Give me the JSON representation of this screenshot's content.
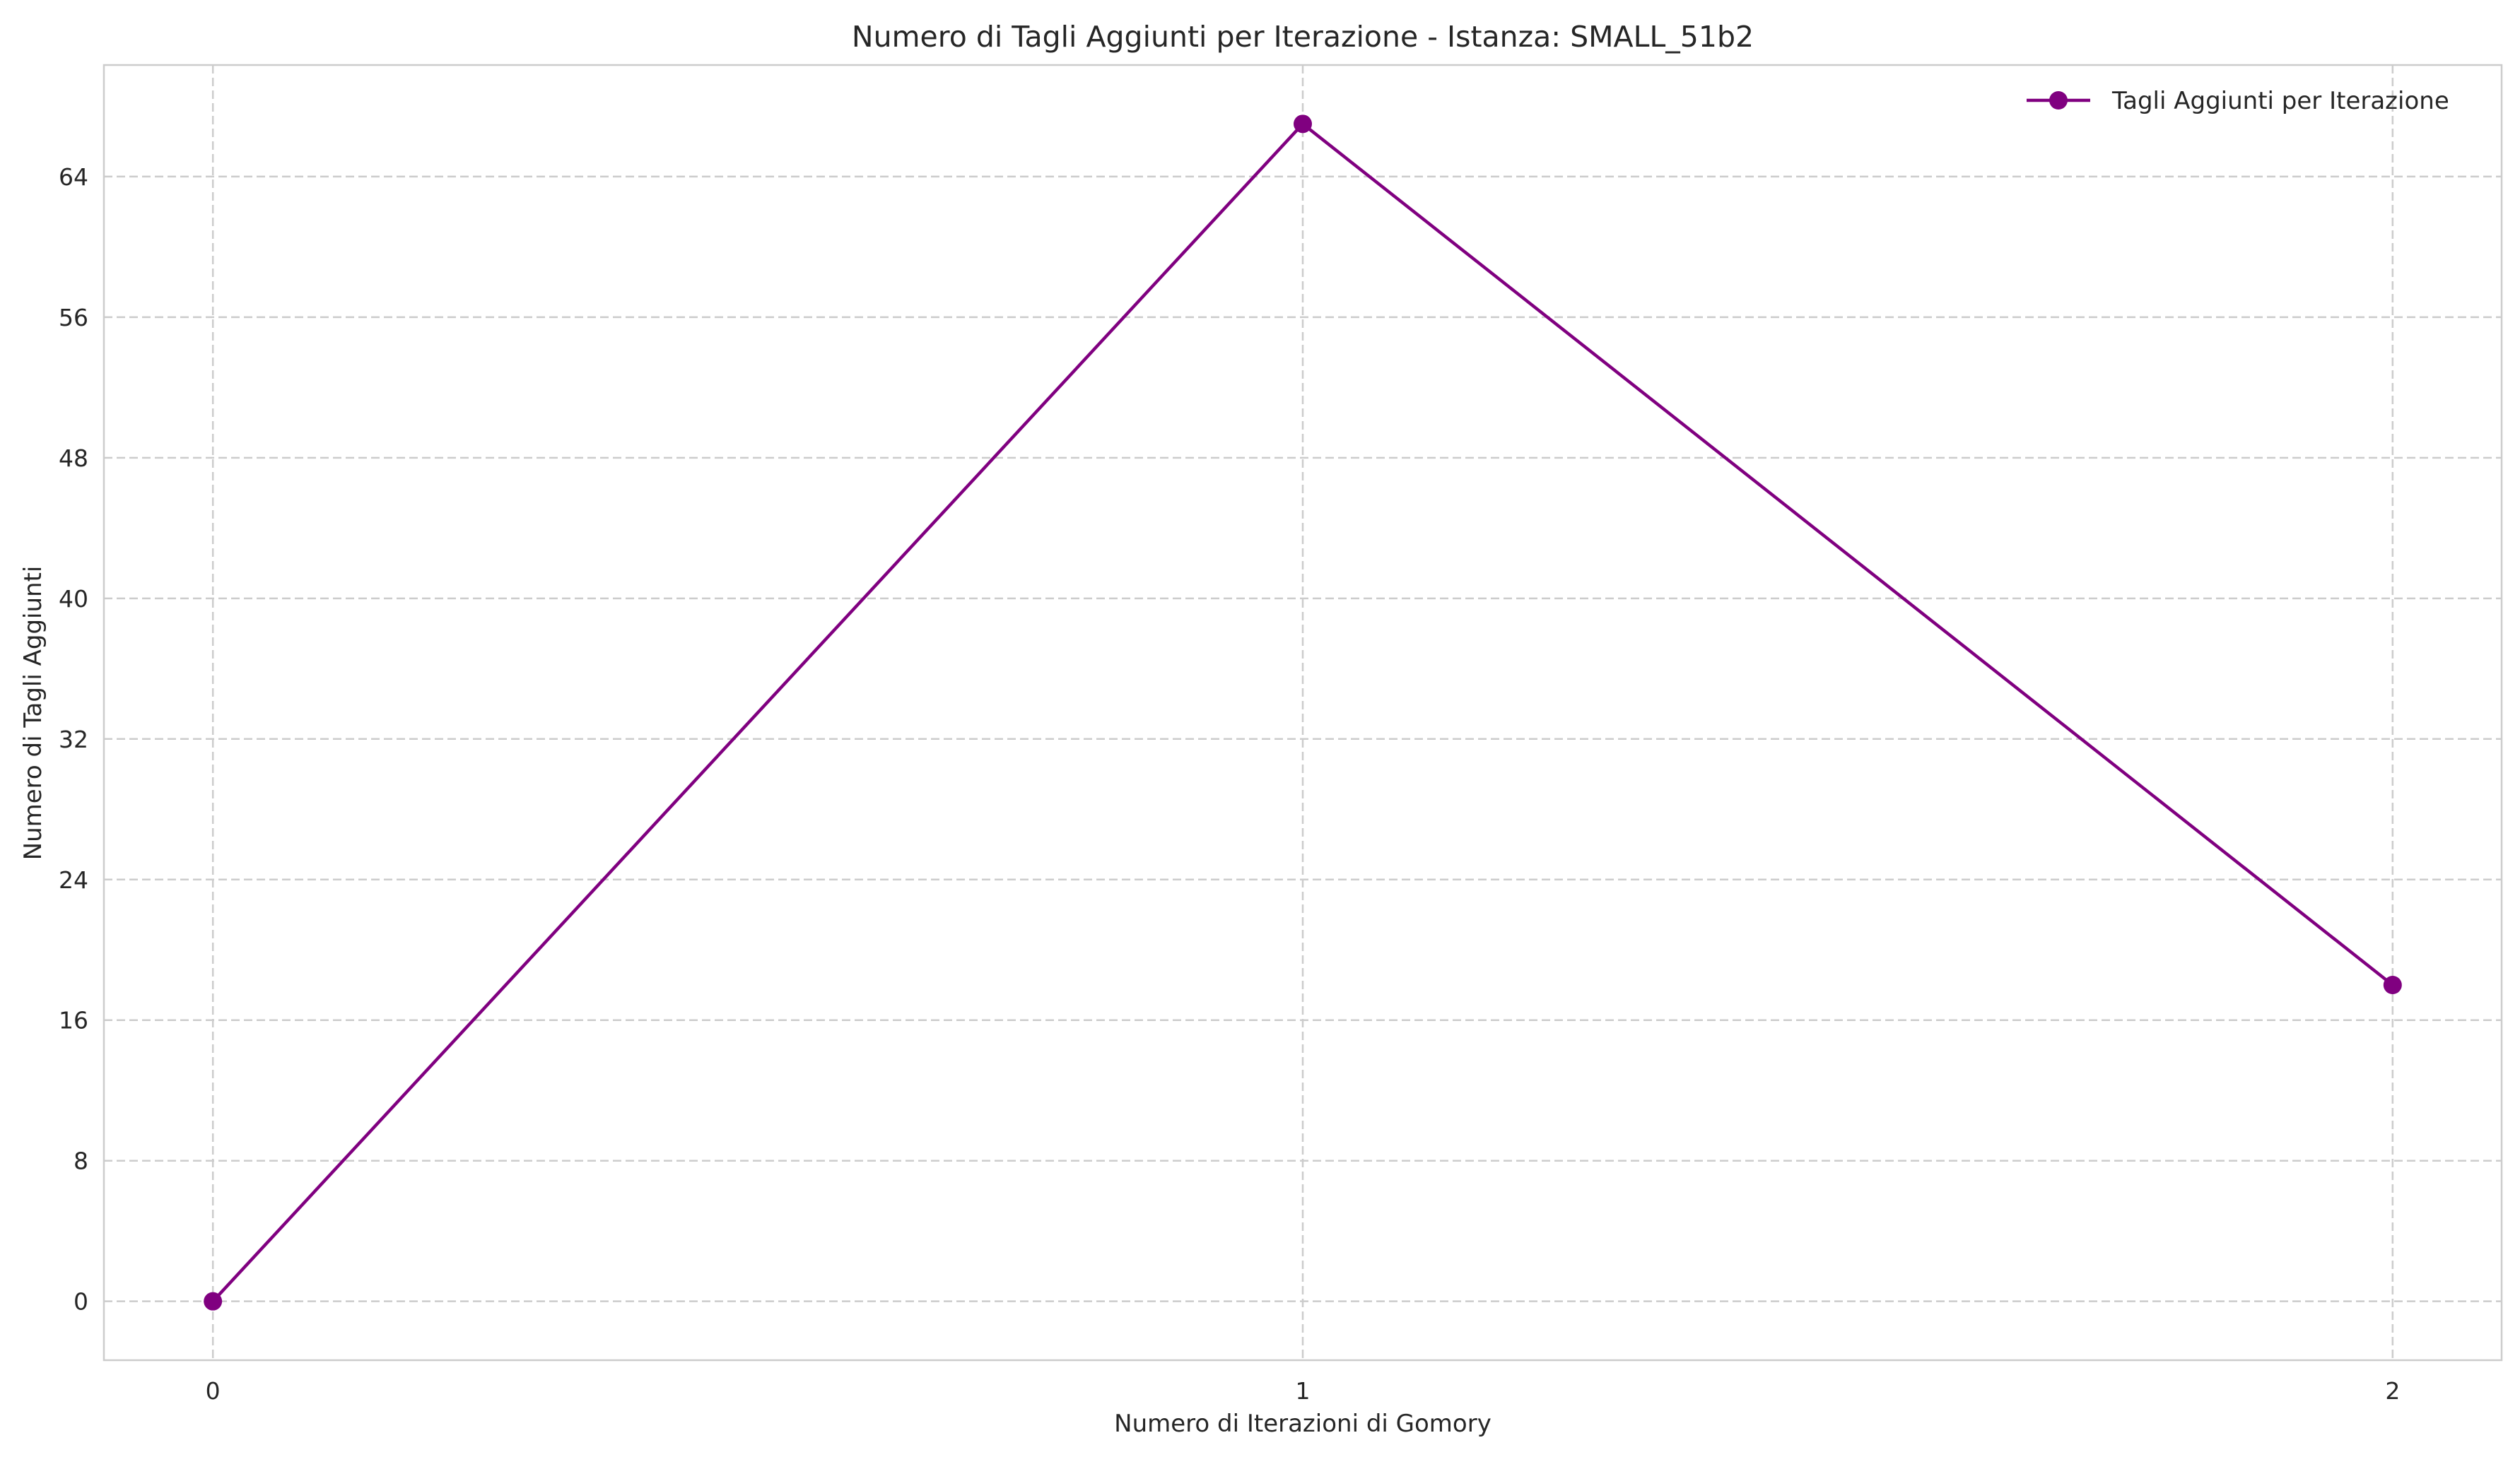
{
  "chart_data": {
    "type": "line",
    "title": "Numero di Tagli Aggiunti per Iterazione - Istanza: SMALL_51b2",
    "xlabel": "Numero di Iterazioni di Gomory",
    "ylabel": "Numero di Tagli Aggiunti",
    "x": [
      0,
      1,
      2
    ],
    "xticks": [
      "0",
      "1",
      "2"
    ],
    "xlim": [
      -0.1,
      2.1
    ],
    "ylim": [
      -3.35,
      70.35
    ],
    "yticks": [
      "0",
      "8",
      "16",
      "24",
      "32",
      "40",
      "48",
      "56",
      "64"
    ],
    "series": [
      {
        "name": "Tagli Aggiunti per Iterazione",
        "values": [
          0,
          67,
          18
        ],
        "color": "#800080",
        "marker": "circle"
      }
    ],
    "grid": true,
    "legend_position": "top-right"
  }
}
